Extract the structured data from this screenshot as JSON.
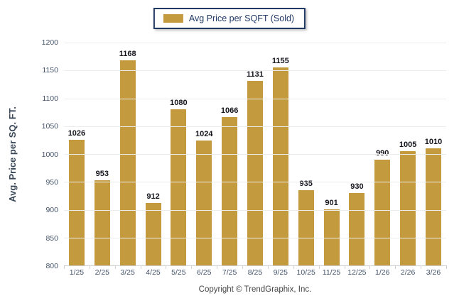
{
  "legend": {
    "label": "Avg Price per SQFT (Sold)",
    "swatch_color": "#C49A3F",
    "border_color": "#203864"
  },
  "footer": {
    "copyright": "Copyright © TrendGraphix, Inc."
  },
  "colors": {
    "bar": "#C49A3F",
    "axis_text": "#44546A",
    "value_label": "#15151D",
    "gridline": "#ECECEC",
    "axis_line": "#CFCFCF"
  },
  "chart_data": {
    "type": "bar",
    "title": "",
    "xlabel": "",
    "ylabel": "Avg. Price per SQ. FT.",
    "categories": [
      "1/25",
      "2/25",
      "3/25",
      "4/25",
      "5/25",
      "6/25",
      "7/25",
      "8/25",
      "9/25",
      "10/25",
      "11/25",
      "12/25",
      "1/26",
      "2/26",
      "3/26"
    ],
    "values": [
      1026,
      953,
      1168,
      912,
      1080,
      1024,
      1066,
      1131,
      1155,
      935,
      901,
      930,
      990,
      1005,
      1010
    ],
    "ylim": [
      800,
      1200
    ],
    "ytick_step": 50,
    "yticks": [
      800,
      850,
      900,
      950,
      1000,
      1050,
      1100,
      1150,
      1200
    ],
    "grid": true,
    "legend_entries": [
      "Avg Price per SQFT (Sold)"
    ],
    "legend_position": "top",
    "bar_color": "#C49A3F"
  }
}
